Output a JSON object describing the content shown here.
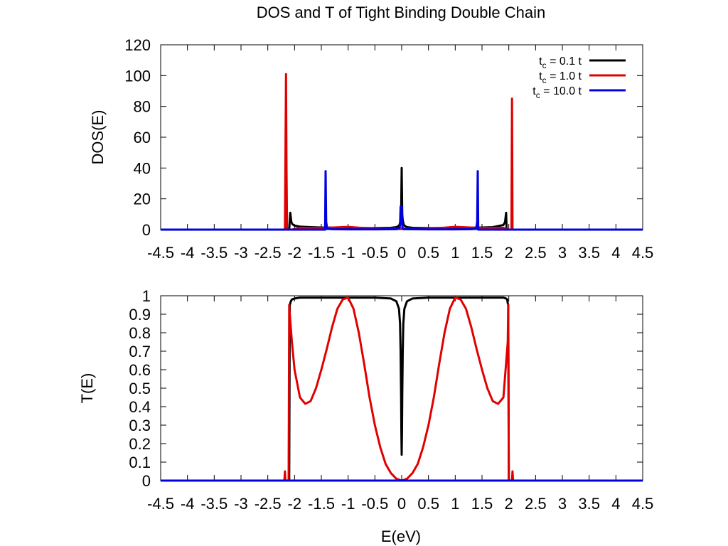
{
  "title": "DOS and T of Tight Binding Double Chain",
  "legend": [
    {
      "prefix": "t",
      "sub": "c",
      "suffix": " = 0.1  t",
      "color": "#000000"
    },
    {
      "prefix": "t",
      "sub": "c",
      "suffix": " = 1.0  t",
      "color": "#e00000"
    },
    {
      "prefix": "t",
      "sub": "c",
      "suffix": " = 10.0 t",
      "color": "#0000e0"
    }
  ],
  "chart_data": [
    {
      "type": "line",
      "ylabel": "DOS(E)",
      "xlabel": "",
      "xlim": [
        -4.5,
        4.5
      ],
      "ylim": [
        0,
        120
      ],
      "xticks": [
        -4.5,
        -4,
        -3.5,
        -3,
        -2.5,
        -2,
        -1.5,
        -1,
        -0.5,
        0,
        0.5,
        1,
        1.5,
        2,
        2.5,
        3,
        3.5,
        4,
        4.5
      ],
      "xtick_labels": [
        "-4.5",
        "-4",
        "-3.5",
        "-3",
        "-2.5",
        "-2",
        "-1.5",
        "-1",
        "-0.5",
        "0",
        "0.5",
        "1",
        "1.5",
        "2",
        "2.5",
        "3",
        "3.5",
        "4",
        "4.5"
      ],
      "yticks": [
        0,
        20,
        40,
        60,
        80,
        100,
        120
      ],
      "ytick_labels": [
        "0",
        "20",
        "40",
        "60",
        "80",
        "100",
        "120"
      ],
      "legend_position": "top-right",
      "series": [
        {
          "name": "tc = 0.1 t",
          "color": "#000000",
          "x": [
            -4.5,
            -2.11,
            -2.1,
            -2.08,
            -2.06,
            -2.04,
            -2.0,
            -1.9,
            -1.7,
            -1.5,
            -1.0,
            -0.5,
            -0.2,
            -0.1,
            -0.06,
            -0.04,
            -0.02,
            -0.01,
            0.0,
            0.01,
            0.02,
            0.04,
            0.06,
            0.1,
            0.2,
            0.5,
            1.0,
            1.5,
            1.7,
            1.9,
            1.93,
            1.95,
            1.96,
            1.97,
            4.5
          ],
          "y": [
            0,
            0,
            0,
            11,
            5,
            3.5,
            2.6,
            2,
            1.6,
            1.4,
            1.1,
            1.0,
            1.2,
            1.6,
            2.3,
            3.2,
            6,
            10,
            40,
            10,
            6,
            3.2,
            2.3,
            1.6,
            1.2,
            1.0,
            1.1,
            1.4,
            1.6,
            3,
            5,
            11,
            0,
            0,
            0
          ]
        },
        {
          "name": "tc = 1.0 t",
          "color": "#e00000",
          "x": [
            -4.5,
            -2.2,
            -2.18,
            -2.16,
            -2.15,
            -2.14,
            -2.12,
            -2.05,
            -1.9,
            -1.5,
            -1.2,
            -1.0,
            -0.8,
            -0.5,
            -0.2,
            0.0,
            0.2,
            0.5,
            0.8,
            1.0,
            1.2,
            1.5,
            1.9,
            2.0,
            2.05,
            2.06,
            2.07,
            2.08,
            4.5
          ],
          "y": [
            0,
            0,
            0,
            101,
            40,
            0,
            0,
            0,
            1.2,
            1.0,
            1.5,
            1.8,
            1.3,
            0.8,
            0.6,
            0.5,
            0.6,
            0.8,
            1.3,
            1.8,
            1.5,
            1.0,
            1.2,
            0,
            0,
            85,
            0,
            0,
            0
          ]
        },
        {
          "name": "tc = 10.0 t",
          "color": "#0000e0",
          "x": [
            -4.5,
            -1.45,
            -1.43,
            -1.42,
            -1.41,
            -1.39,
            -1.3,
            -1.0,
            -0.5,
            -0.1,
            -0.04,
            -0.03,
            -0.02,
            0.0,
            0.01,
            0.02,
            0.03,
            0.1,
            0.5,
            1.0,
            1.3,
            1.39,
            1.41,
            1.42,
            1.43,
            1.45,
            4.5
          ],
          "y": [
            0,
            0,
            0,
            38,
            5,
            0.5,
            0.3,
            0.2,
            0.2,
            0.3,
            1,
            3,
            15,
            15,
            3,
            1,
            0.3,
            0.3,
            0.2,
            0.2,
            0.3,
            0.5,
            5,
            38,
            0,
            0,
            0
          ]
        }
      ]
    },
    {
      "type": "line",
      "ylabel": "T(E)",
      "xlabel": "E(eV)",
      "xlim": [
        -4.5,
        4.5
      ],
      "ylim": [
        0,
        1
      ],
      "xticks": [
        -4.5,
        -4,
        -3.5,
        -3,
        -2.5,
        -2,
        -1.5,
        -1,
        -0.5,
        0,
        0.5,
        1,
        1.5,
        2,
        2.5,
        3,
        3.5,
        4,
        4.5
      ],
      "xtick_labels": [
        "-4.5",
        "-4",
        "-3.5",
        "-3",
        "-2.5",
        "-2",
        "-1.5",
        "-1",
        "-0.5",
        "0",
        "0.5",
        "1",
        "1.5",
        "2",
        "2.5",
        "3",
        "3.5",
        "4",
        "4.5"
      ],
      "yticks": [
        0,
        0.1,
        0.2,
        0.3,
        0.4,
        0.5,
        0.6,
        0.7,
        0.8,
        0.9,
        1
      ],
      "ytick_labels": [
        "0",
        "0.1",
        "0.2",
        "0.3",
        "0.4",
        "0.5",
        "0.6",
        "0.7",
        "0.8",
        "0.9",
        "1"
      ],
      "series": [
        {
          "name": "tc = 0.1 t",
          "color": "#000000",
          "x": [
            -4.5,
            -2.11,
            -2.1,
            -2.09,
            -2.07,
            -2.05,
            -2.0,
            -1.9,
            -1.5,
            -1.0,
            -0.5,
            -0.2,
            -0.1,
            -0.05,
            -0.03,
            -0.02,
            -0.01,
            -0.005,
            0.0,
            0.005,
            0.01,
            0.02,
            0.03,
            0.05,
            0.1,
            0.2,
            0.5,
            1.0,
            1.5,
            1.9,
            1.95,
            1.97,
            1.98,
            1.99,
            2.0,
            4.5
          ],
          "y": [
            0,
            0,
            0,
            0.95,
            0.97,
            0.98,
            0.985,
            0.99,
            0.99,
            0.99,
            0.99,
            0.985,
            0.97,
            0.93,
            0.85,
            0.7,
            0.45,
            0.25,
            0.14,
            0.25,
            0.45,
            0.7,
            0.85,
            0.93,
            0.97,
            0.985,
            0.99,
            0.99,
            0.99,
            0.99,
            0.985,
            0.98,
            0.96,
            0.95,
            0,
            0
          ]
        },
        {
          "name": "tc = 1.0 t",
          "color": "#e00000",
          "x": [
            -4.5,
            -2.2,
            -2.19,
            -2.18,
            -2.17,
            -2.12,
            -2.11,
            -2.1,
            -2.09,
            -2.05,
            -2.0,
            -1.9,
            -1.8,
            -1.7,
            -1.6,
            -1.5,
            -1.4,
            -1.3,
            -1.2,
            -1.1,
            -1.0,
            -0.9,
            -0.8,
            -0.7,
            -0.6,
            -0.5,
            -0.4,
            -0.3,
            -0.2,
            -0.1,
            0.0,
            0.1,
            0.2,
            0.3,
            0.4,
            0.5,
            0.6,
            0.7,
            0.8,
            0.9,
            1.0,
            1.1,
            1.2,
            1.3,
            1.4,
            1.5,
            1.6,
            1.7,
            1.8,
            1.9,
            1.98,
            1.99,
            2.0,
            2.06,
            2.07,
            2.08,
            2.09,
            4.5
          ],
          "y": [
            0,
            0,
            0,
            0.05,
            0,
            0,
            0,
            0.95,
            0.9,
            0.75,
            0.6,
            0.45,
            0.415,
            0.43,
            0.5,
            0.6,
            0.71,
            0.83,
            0.93,
            0.98,
            0.99,
            0.93,
            0.8,
            0.63,
            0.45,
            0.3,
            0.18,
            0.09,
            0.04,
            0.01,
            0,
            0.01,
            0.04,
            0.09,
            0.18,
            0.3,
            0.45,
            0.63,
            0.8,
            0.93,
            0.99,
            0.98,
            0.93,
            0.83,
            0.71,
            0.6,
            0.5,
            0.43,
            0.415,
            0.45,
            0.75,
            0.95,
            0,
            0,
            0.05,
            0,
            0,
            0
          ]
        },
        {
          "name": "tc = 10.0 t",
          "color": "#0000e0",
          "x": [
            -4.5,
            4.5
          ],
          "y": [
            0,
            0
          ]
        }
      ]
    }
  ]
}
